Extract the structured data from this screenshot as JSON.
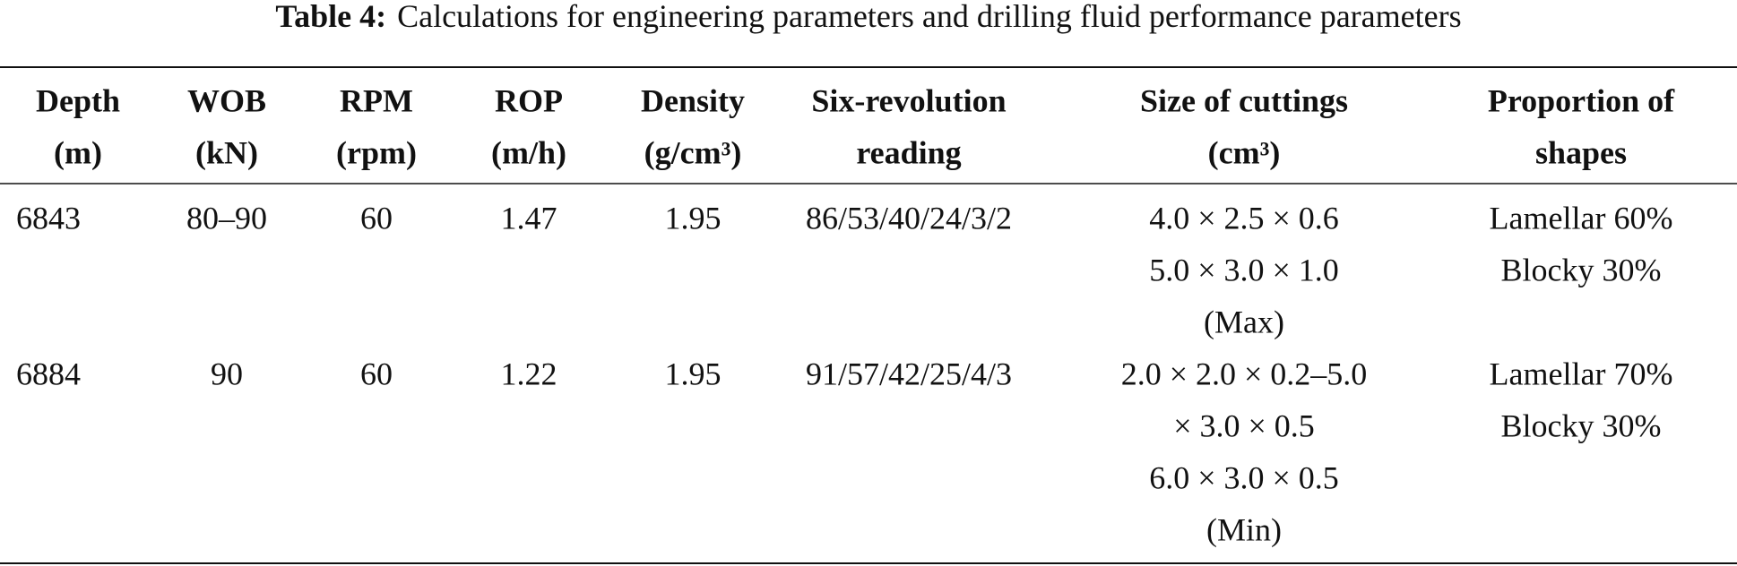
{
  "caption": {
    "label": "Table 4:",
    "text": "Calculations for engineering parameters and drilling fluid performance parameters"
  },
  "table": {
    "header": [
      [
        "Depth",
        "(m)"
      ],
      [
        "WOB",
        "(kN)"
      ],
      [
        "RPM",
        "(rpm)"
      ],
      [
        "ROP",
        "(m/h)"
      ],
      [
        "Density",
        "(g/cm³)"
      ],
      [
        "Six-revolution",
        "reading"
      ],
      [
        "Size of cuttings",
        "(cm³)"
      ],
      [
        "Proportion of",
        "shapes"
      ]
    ],
    "rows": [
      [
        [
          "6843"
        ],
        [
          "80–90"
        ],
        [
          "60"
        ],
        [
          "1.47"
        ],
        [
          "1.95"
        ],
        [
          "86/53/40/24/3/2"
        ],
        [
          "4.0 × 2.5 × 0.6",
          "5.0 × 3.0 × 1.0",
          "(Max)"
        ],
        [
          "Lamellar 60%",
          "Blocky 30%"
        ]
      ],
      [
        [
          "6884"
        ],
        [
          "90"
        ],
        [
          "60"
        ],
        [
          "1.22"
        ],
        [
          "1.95"
        ],
        [
          "91/57/42/25/4/3"
        ],
        [
          "2.0 × 2.0 × 0.2–5.0",
          "× 3.0 × 0.5",
          "6.0 × 3.0 × 0.5",
          "(Min)"
        ],
        [
          "Lamellar 70%",
          "Blocky 30%"
        ]
      ]
    ]
  }
}
